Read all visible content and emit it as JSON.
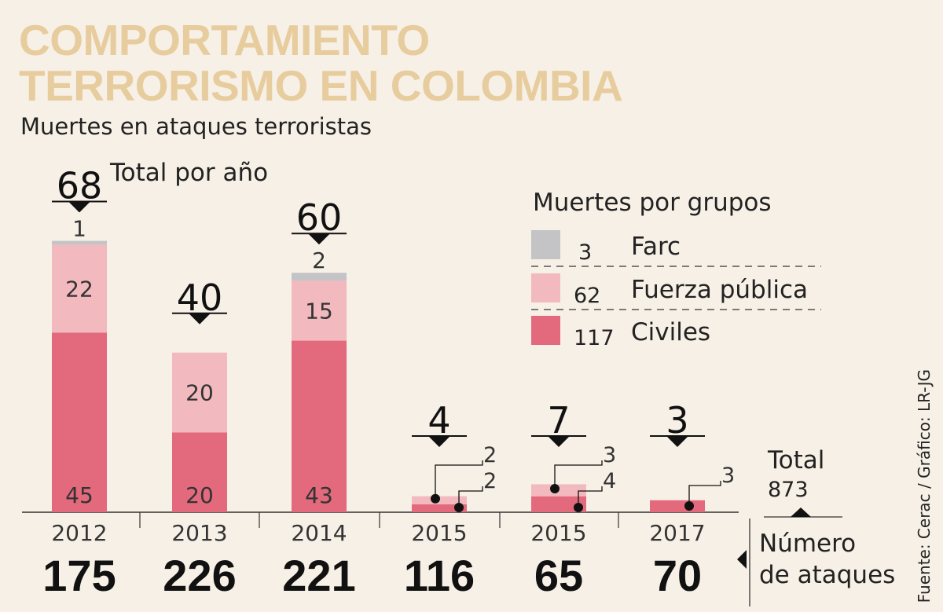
{
  "header": {
    "title_line1": "COMPORTAMIENTO",
    "title_line2": "TERRORISMO EN COLOMBIA",
    "subtitle": "Muertes en ataques terroristas",
    "total_label": "Total por año"
  },
  "legend": {
    "title": "Muertes por grupos",
    "items": [
      {
        "name": "Farc",
        "total": "3",
        "color": "#c4c4c6"
      },
      {
        "name": "Fuerza pública",
        "total": "62",
        "color": "#f2b9bf"
      },
      {
        "name": "Civiles",
        "total": "117",
        "color": "#e3697d"
      }
    ]
  },
  "totals_box": {
    "label": "Total",
    "value": "873"
  },
  "attacks_label": {
    "line1": "Número",
    "line2": "de ataques"
  },
  "source": "Fuente: Cerac / Gráfico: LR-JG",
  "chart_data": {
    "type": "bar",
    "stacked": true,
    "categories": [
      "2012",
      "2013",
      "2014",
      "2015",
      "2015",
      "2017"
    ],
    "series": [
      {
        "name": "Civiles",
        "color": "#e3697d",
        "values": [
          45,
          20,
          43,
          2,
          4,
          3
        ]
      },
      {
        "name": "Fuerza pública",
        "color": "#f2b9bf",
        "values": [
          22,
          20,
          15,
          2,
          3,
          0
        ]
      },
      {
        "name": "Farc",
        "color": "#c4c4c6",
        "values": [
          1,
          0,
          2,
          0,
          0,
          0
        ]
      }
    ],
    "totals": [
      68,
      40,
      60,
      4,
      7,
      3
    ],
    "attacks": [
      175,
      226,
      221,
      116,
      65,
      70
    ],
    "ylim": [
      0,
      70
    ],
    "grid": false,
    "legend_position": "top-right"
  }
}
